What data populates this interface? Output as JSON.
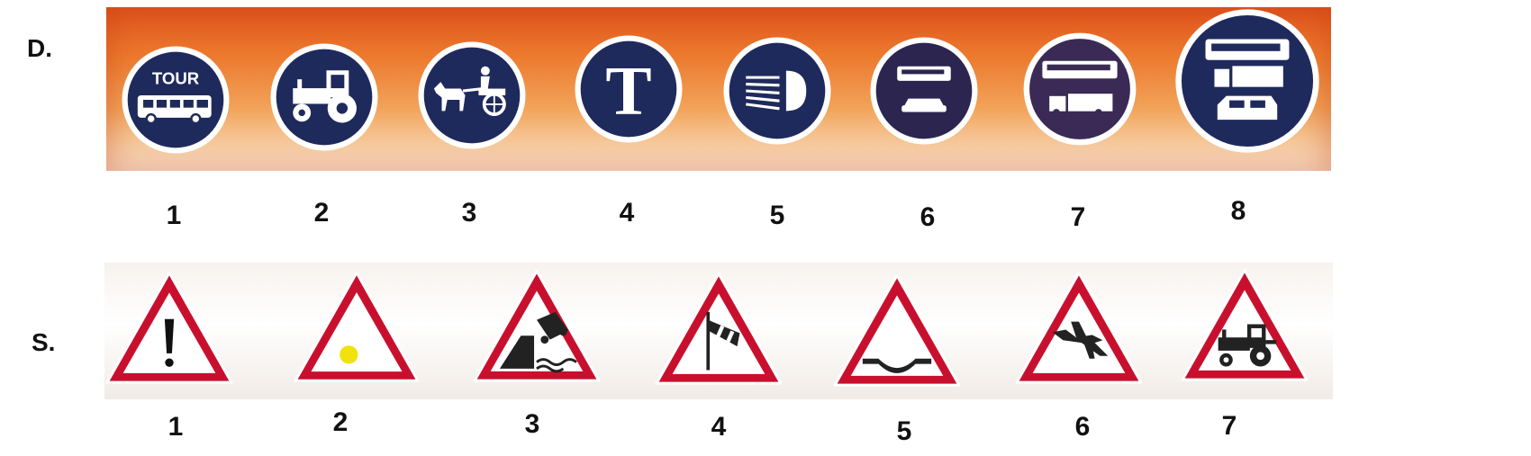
{
  "rows": {
    "d": {
      "letter": "D.",
      "signs": [
        {
          "number": "1",
          "icon": "tour-bus-icon",
          "text": "TOUR"
        },
        {
          "number": "2",
          "icon": "tractor-icon"
        },
        {
          "number": "3",
          "icon": "horse-cart-icon"
        },
        {
          "number": "4",
          "icon": "letter-t-icon",
          "text": "T"
        },
        {
          "number": "5",
          "icon": "headlight-icon"
        },
        {
          "number": "6",
          "icon": "bus-and-car-icon"
        },
        {
          "number": "7",
          "icon": "bus-and-truck-icon"
        },
        {
          "number": "8",
          "icon": "bus-truck-van-icon"
        }
      ]
    },
    "s": {
      "letter": "S.",
      "signs": [
        {
          "number": "1",
          "icon": "exclamation-icon"
        },
        {
          "number": "2",
          "icon": "yellow-light-icon"
        },
        {
          "number": "3",
          "icon": "car-falling-quay-icon"
        },
        {
          "number": "4",
          "icon": "windsock-icon"
        },
        {
          "number": "5",
          "icon": "road-dip-icon"
        },
        {
          "number": "6",
          "icon": "low-flying-aircraft-icon"
        },
        {
          "number": "7",
          "icon": "tractor-icon"
        }
      ]
    }
  },
  "colors": {
    "sign_blue": "#1f2a5c",
    "sign_red": "#c8102e",
    "light_yellow": "#f2e20c",
    "strip_orange": "#ec7a2e"
  }
}
